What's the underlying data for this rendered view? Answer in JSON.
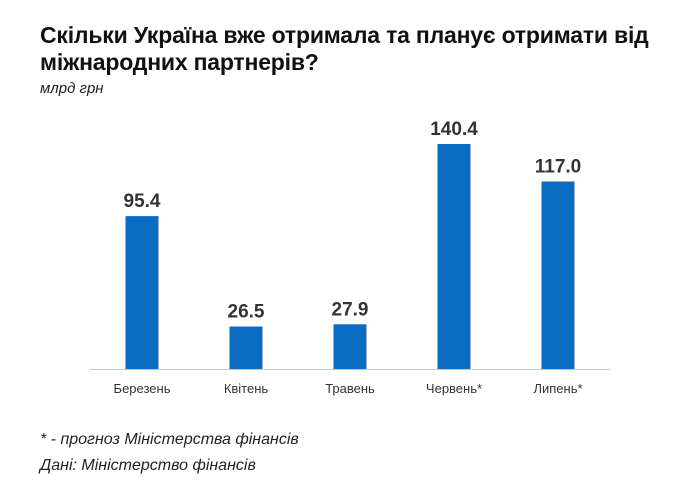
{
  "title": "Скільки Україна вже отримала та планує отримати від міжнародних партнерів?",
  "subtitle": "млрд грн",
  "footnote_forecast": "* - прогноз Міністерства фінансів",
  "footnote_source": "Дані: Міністерство фінансів",
  "colors": {
    "bar": "#0a6cc2",
    "baseline": "#c8c8c8",
    "label": "#333333",
    "tick": "#333333"
  },
  "chart_data": {
    "type": "bar",
    "categories": [
      "Березень",
      "Квітень",
      "Травень",
      "Червень*",
      "Липень*"
    ],
    "values": [
      95.4,
      26.5,
      27.9,
      140.4,
      117.0
    ],
    "value_labels": [
      "95.4",
      "26.5",
      "27.9",
      "140.4",
      "117.0"
    ],
    "title": "Скільки Україна вже отримала та планує отримати від міжнародних партнерів?",
    "xlabel": "",
    "ylabel": "млрд грн",
    "ylim": [
      0,
      140.4
    ],
    "grid": false,
    "legend": "none"
  }
}
